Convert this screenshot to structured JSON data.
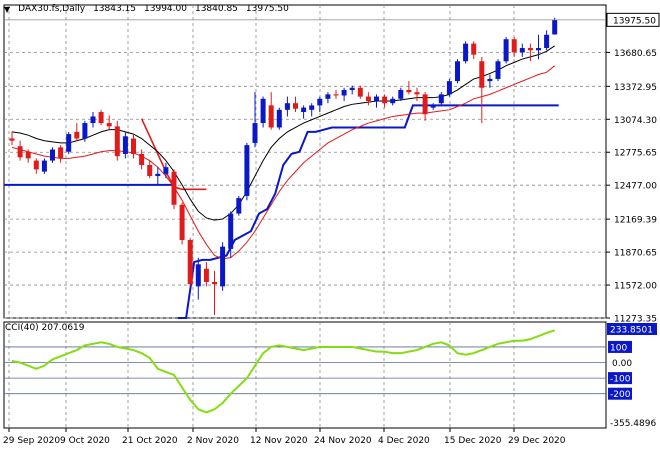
{
  "colors": {
    "background": "#ffffff",
    "bull_candle": "#0a18c8",
    "bear_candle": "#e11b1b",
    "ma_black": "#000000",
    "ma_red": "#e11b1b",
    "support_blue": "#0a18c8",
    "cci_line": "#84dd11",
    "price_tag_bg": "#ffffff",
    "level_tag_bg": "#0a18c8",
    "grid": "#8a8a8a"
  },
  "chart_data": {
    "type": "candlestick",
    "symbol": "DAX30.fs,Daily",
    "ohlc": [
      "13843.15",
      "13994.00",
      "13840.85",
      "13975.50"
    ],
    "last_price_label": "13975.50",
    "x_ticks": [
      "29 Sep 2020",
      "9 Oct 2020",
      "21 Oct 2020",
      "2 Nov 2020",
      "12 Nov 2020",
      "24 Nov 2020",
      "4 Dec 2020",
      "15 Dec 2020",
      "29 Dec 2020"
    ],
    "price_axis": {
      "ticks": [
        "13680.65",
        "13372.95",
        "13074.30",
        "12775.65",
        "12477.00",
        "12169.39",
        "11870.65",
        "11572.00",
        "11273.35"
      ],
      "ylim": [
        11273.35,
        14000
      ]
    },
    "candles": [
      {
        "o": 12900,
        "h": 12960,
        "l": 12840,
        "c": 12880
      },
      {
        "o": 12830,
        "h": 12880,
        "l": 12700,
        "c": 12730
      },
      {
        "o": 12780,
        "h": 12800,
        "l": 12680,
        "c": 12720
      },
      {
        "o": 12700,
        "h": 12720,
        "l": 12580,
        "c": 12620
      },
      {
        "o": 12600,
        "h": 12720,
        "l": 12580,
        "c": 12700
      },
      {
        "o": 12700,
        "h": 12820,
        "l": 12680,
        "c": 12800
      },
      {
        "o": 12820,
        "h": 12840,
        "l": 12680,
        "c": 12720
      },
      {
        "o": 12780,
        "h": 12960,
        "l": 12760,
        "c": 12940
      },
      {
        "o": 12960,
        "h": 13040,
        "l": 12880,
        "c": 12900
      },
      {
        "o": 12900,
        "h": 13060,
        "l": 12870,
        "c": 13040
      },
      {
        "o": 13040,
        "h": 13140,
        "l": 13000,
        "c": 13100
      },
      {
        "o": 13140,
        "h": 13160,
        "l": 13020,
        "c": 13040
      },
      {
        "o": 13040,
        "h": 13110,
        "l": 12980,
        "c": 13010
      },
      {
        "o": 13010,
        "h": 13060,
        "l": 12700,
        "c": 12740
      },
      {
        "o": 12760,
        "h": 12960,
        "l": 12720,
        "c": 12920
      },
      {
        "o": 12900,
        "h": 12940,
        "l": 12720,
        "c": 12760
      },
      {
        "o": 12760,
        "h": 12800,
        "l": 12620,
        "c": 12660
      },
      {
        "o": 12660,
        "h": 12700,
        "l": 12540,
        "c": 12560
      },
      {
        "o": 12560,
        "h": 12640,
        "l": 12480,
        "c": 12580
      },
      {
        "o": 12580,
        "h": 12680,
        "l": 12540,
        "c": 12640
      },
      {
        "o": 12600,
        "h": 12620,
        "l": 12260,
        "c": 12300
      },
      {
        "o": 12300,
        "h": 12320,
        "l": 11940,
        "c": 11980
      },
      {
        "o": 11980,
        "h": 12000,
        "l": 11560,
        "c": 11580
      },
      {
        "o": 11560,
        "h": 11820,
        "l": 11440,
        "c": 11760
      },
      {
        "o": 11720,
        "h": 11780,
        "l": 11560,
        "c": 11600
      },
      {
        "o": 11600,
        "h": 11700,
        "l": 11300,
        "c": 11580
      },
      {
        "o": 11560,
        "h": 11960,
        "l": 11520,
        "c": 11920
      },
      {
        "o": 11900,
        "h": 12240,
        "l": 11820,
        "c": 12220
      },
      {
        "o": 12220,
        "h": 12380,
        "l": 12200,
        "c": 12360
      },
      {
        "o": 12380,
        "h": 12860,
        "l": 12340,
        "c": 12840
      },
      {
        "o": 12860,
        "h": 13320,
        "l": 12820,
        "c": 13040
      },
      {
        "o": 13040,
        "h": 13280,
        "l": 13000,
        "c": 13260
      },
      {
        "o": 13200,
        "h": 13320,
        "l": 12980,
        "c": 13000
      },
      {
        "o": 13000,
        "h": 13180,
        "l": 12980,
        "c": 13160
      },
      {
        "o": 13160,
        "h": 13280,
        "l": 13100,
        "c": 13220
      },
      {
        "o": 13220,
        "h": 13280,
        "l": 13140,
        "c": 13170
      },
      {
        "o": 13140,
        "h": 13200,
        "l": 13080,
        "c": 13180
      },
      {
        "o": 13160,
        "h": 13220,
        "l": 13100,
        "c": 13200
      },
      {
        "o": 13200,
        "h": 13280,
        "l": 13140,
        "c": 13260
      },
      {
        "o": 13260,
        "h": 13320,
        "l": 13220,
        "c": 13300
      },
      {
        "o": 13300,
        "h": 13340,
        "l": 13260,
        "c": 13290
      },
      {
        "o": 13290,
        "h": 13360,
        "l": 13240,
        "c": 13340
      },
      {
        "o": 13340,
        "h": 13380,
        "l": 13300,
        "c": 13360
      },
      {
        "o": 13360,
        "h": 13380,
        "l": 13260,
        "c": 13280
      },
      {
        "o": 13280,
        "h": 13320,
        "l": 13200,
        "c": 13240
      },
      {
        "o": 13240,
        "h": 13300,
        "l": 13180,
        "c": 13280
      },
      {
        "o": 13280,
        "h": 13300,
        "l": 13180,
        "c": 13220
      },
      {
        "o": 13220,
        "h": 13280,
        "l": 13200,
        "c": 13260
      },
      {
        "o": 13260,
        "h": 13360,
        "l": 13240,
        "c": 13340
      },
      {
        "o": 13340,
        "h": 13420,
        "l": 13300,
        "c": 13320
      },
      {
        "o": 13320,
        "h": 13360,
        "l": 13240,
        "c": 13300
      },
      {
        "o": 13300,
        "h": 13320,
        "l": 13060,
        "c": 13120
      },
      {
        "o": 13180,
        "h": 13220,
        "l": 13160,
        "c": 13200
      },
      {
        "o": 13220,
        "h": 13320,
        "l": 13200,
        "c": 13300
      },
      {
        "o": 13300,
        "h": 13440,
        "l": 13280,
        "c": 13420
      },
      {
        "o": 13420,
        "h": 13620,
        "l": 13400,
        "c": 13600
      },
      {
        "o": 13600,
        "h": 13780,
        "l": 13580,
        "c": 13760
      },
      {
        "o": 13760,
        "h": 13780,
        "l": 13620,
        "c": 13660
      },
      {
        "o": 13600,
        "h": 13640,
        "l": 13040,
        "c": 13360
      },
      {
        "o": 13420,
        "h": 13480,
        "l": 13360,
        "c": 13440
      },
      {
        "o": 13440,
        "h": 13620,
        "l": 13420,
        "c": 13600
      },
      {
        "o": 13600,
        "h": 13820,
        "l": 13580,
        "c": 13800
      },
      {
        "o": 13800,
        "h": 13820,
        "l": 13640,
        "c": 13680
      },
      {
        "o": 13680,
        "h": 13760,
        "l": 13640,
        "c": 13720
      },
      {
        "o": 13720,
        "h": 13760,
        "l": 13600,
        "c": 13700
      },
      {
        "o": 13700,
        "h": 13840,
        "l": 13620,
        "c": 13720
      },
      {
        "o": 13720,
        "h": 13880,
        "l": 13700,
        "c": 13840
      },
      {
        "o": 13843.15,
        "h": 13994,
        "l": 13840.85,
        "c": 13975.5
      }
    ],
    "ma_black": [
      12960,
      12950,
      12930,
      12900,
      12880,
      12870,
      12860,
      12860,
      12880,
      12900,
      12930,
      12960,
      12980,
      12980,
      12960,
      12940,
      12900,
      12840,
      12780,
      12700,
      12600,
      12480,
      12350,
      12240,
      12180,
      12160,
      12170,
      12220,
      12300,
      12420,
      12560,
      12700,
      12820,
      12900,
      12960,
      13000,
      13040,
      13070,
      13100,
      13130,
      13160,
      13190,
      13210,
      13220,
      13230,
      13240,
      13240,
      13240,
      13250,
      13260,
      13270,
      13270,
      13270,
      13280,
      13300,
      13340,
      13390,
      13440,
      13460,
      13490,
      13520,
      13560,
      13590,
      13620,
      13640,
      13660,
      13690,
      13740
    ],
    "ma_red": [
      12820,
      12800,
      12780,
      12760,
      12740,
      12730,
      12720,
      12720,
      12730,
      12740,
      12760,
      12780,
      12790,
      12790,
      12780,
      12770,
      12740,
      12700,
      12640,
      12560,
      12460,
      12340,
      12200,
      12060,
      11940,
      11840,
      11810,
      11820,
      11880,
      11960,
      12060,
      12180,
      12300,
      12420,
      12520,
      12600,
      12680,
      12740,
      12800,
      12860,
      12900,
      12940,
      12980,
      13010,
      13040,
      13060,
      13080,
      13100,
      13110,
      13120,
      13130,
      13130,
      13140,
      13150,
      13160,
      13190,
      13220,
      13260,
      13280,
      13300,
      13330,
      13360,
      13390,
      13420,
      13450,
      13480,
      13500,
      13560
    ],
    "ma_red_upper_segment": [
      13080,
      12920,
      12760,
      12600,
      12460,
      12440,
      12440,
      12440,
      12440
    ],
    "support_segments": [
      {
        "from": 0,
        "to": 20,
        "values": [
          12480
        ]
      },
      {
        "from": 20,
        "to": 67,
        "values": [
          11273,
          11273,
          11780,
          11800,
          11800,
          11820,
          11840,
          11980,
          12020,
          12060,
          12220,
          12260,
          12400,
          12660,
          12760,
          12780,
          12960,
          12960,
          12980,
          13000,
          13000,
          13000,
          13000,
          13000,
          13000,
          13000,
          13000,
          13000,
          13000,
          13200,
          13200,
          13200,
          13200,
          13200,
          13200,
          13200,
          13200,
          13200,
          13200,
          13200,
          13200,
          13200,
          13200,
          13200,
          13200,
          13200,
          13200,
          13200
        ]
      }
    ],
    "cci": {
      "label": "CCI(40) 207.0619",
      "value": 207.0619,
      "ticks": [
        "233.8501",
        "100",
        "0.00",
        "-100",
        "-200",
        "-355.4896"
      ],
      "ylim": [
        -355.4896,
        233.8501
      ],
      "values": [
        10,
        0,
        -20,
        -40,
        -20,
        20,
        40,
        60,
        80,
        110,
        120,
        130,
        120,
        100,
        90,
        80,
        60,
        30,
        -40,
        -60,
        -80,
        -160,
        -240,
        -300,
        -320,
        -300,
        -260,
        -200,
        -150,
        -100,
        -20,
        60,
        100,
        110,
        100,
        90,
        80,
        90,
        100,
        100,
        100,
        100,
        100,
        90,
        80,
        70,
        70,
        60,
        60,
        70,
        80,
        100,
        120,
        130,
        110,
        60,
        50,
        60,
        80,
        100,
        120,
        130,
        140,
        140,
        150,
        170,
        190,
        207
      ]
    }
  }
}
